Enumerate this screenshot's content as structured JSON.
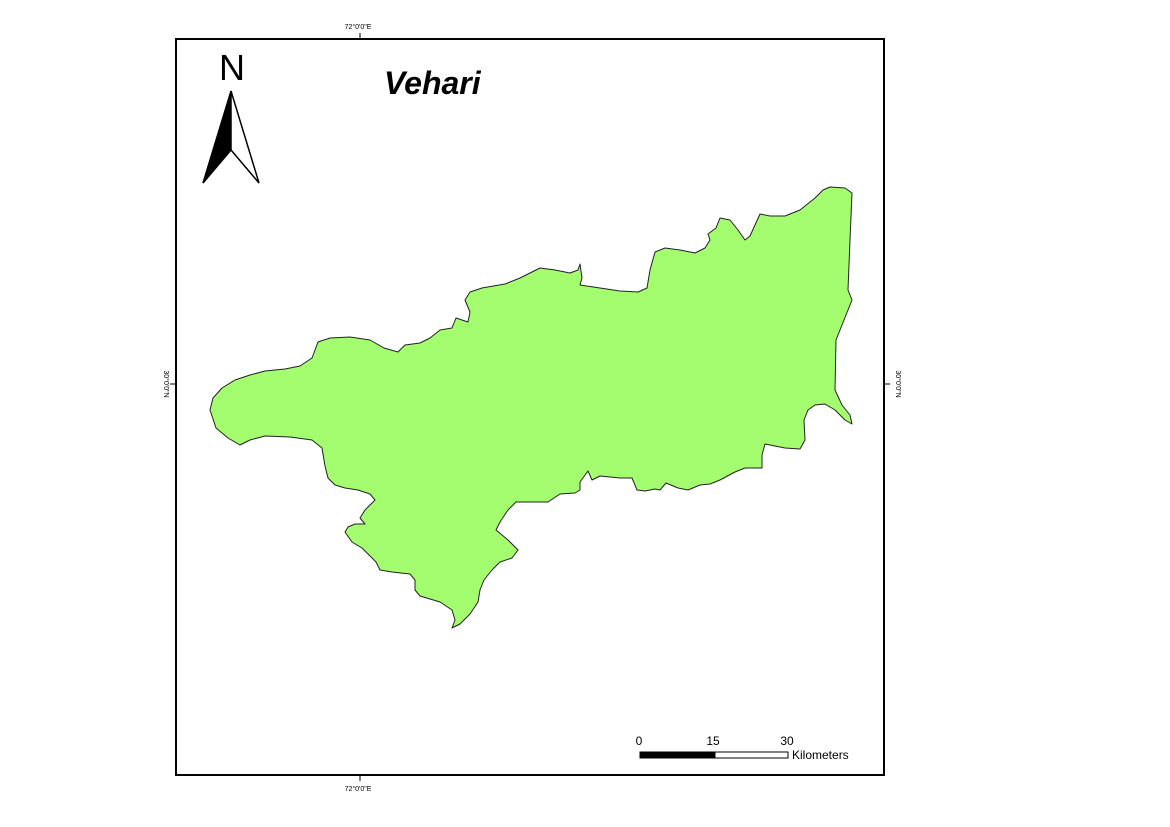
{
  "map": {
    "title": "Vehari",
    "region_fill": "#a3fd6f",
    "region_stroke": "#222222",
    "north_arrow": {
      "letter": "N",
      "icon": "north-arrow-icon"
    },
    "graticule": {
      "top_label": "72°0'0\"E",
      "bottom_label": "72°0'0\"E",
      "left_label": "30°0'0\"N",
      "right_label": "30°0'0\"N"
    },
    "scale_bar": {
      "ticks": [
        "0",
        "15",
        "30"
      ],
      "unit": "Kilometers"
    }
  }
}
